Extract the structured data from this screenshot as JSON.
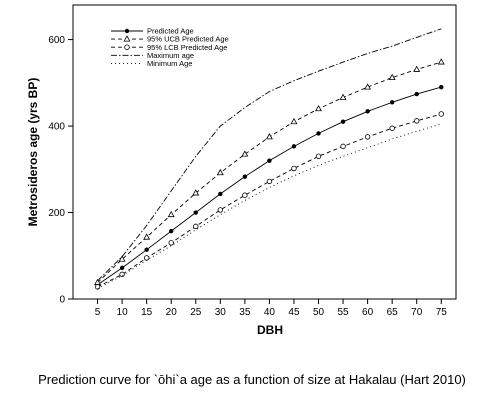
{
  "caption": "Prediction curve for `ōhi`a age as a function of size at Hakalau (Hart 2010)",
  "chart_data": {
    "type": "line",
    "title": "",
    "xlabel": "DBH",
    "ylabel": "Metrosideros age (yrs BP)",
    "x": [
      5,
      10,
      15,
      20,
      25,
      30,
      35,
      40,
      45,
      50,
      55,
      60,
      65,
      70,
      75
    ],
    "xlim": [
      0,
      78
    ],
    "ylim": [
      0,
      680
    ],
    "xticks": [
      5,
      10,
      15,
      20,
      25,
      30,
      35,
      40,
      45,
      50,
      55,
      60,
      65,
      70,
      75
    ],
    "yticks": [
      0,
      200,
      400,
      600
    ],
    "grid": false,
    "legend_position": "top-left",
    "series": [
      {
        "name": "Predicted Age",
        "style": "solid",
        "marker": "filled-circle",
        "color": "#000000",
        "values": [
          33,
          72,
          114,
          157,
          200,
          243,
          283,
          320,
          353,
          383,
          410,
          434,
          455,
          474,
          490
        ]
      },
      {
        "name": "95% UCB Predicted Age",
        "style": "dashed",
        "marker": "open-triangle",
        "color": "#000000",
        "values": [
          38,
          92,
          143,
          195,
          245,
          292,
          335,
          375,
          410,
          440,
          466,
          490,
          512,
          531,
          548
        ]
      },
      {
        "name": "95% LCB Predicted Age",
        "style": "dashed",
        "marker": "open-circle",
        "color": "#000000",
        "values": [
          28,
          57,
          95,
          130,
          168,
          206,
          240,
          272,
          302,
          330,
          353,
          375,
          395,
          412,
          428
        ]
      },
      {
        "name": "Maximum age",
        "style": "dash-dot",
        "marker": "none",
        "color": "#000000",
        "values": [
          42,
          98,
          170,
          250,
          330,
          400,
          443,
          480,
          505,
          527,
          548,
          568,
          585,
          605,
          625
        ]
      },
      {
        "name": "Minimum Age",
        "style": "dotted",
        "marker": "none",
        "color": "#000000",
        "values": [
          24,
          54,
          90,
          123,
          160,
          195,
          228,
          258,
          285,
          309,
          330,
          350,
          370,
          388,
          405
        ]
      }
    ]
  }
}
